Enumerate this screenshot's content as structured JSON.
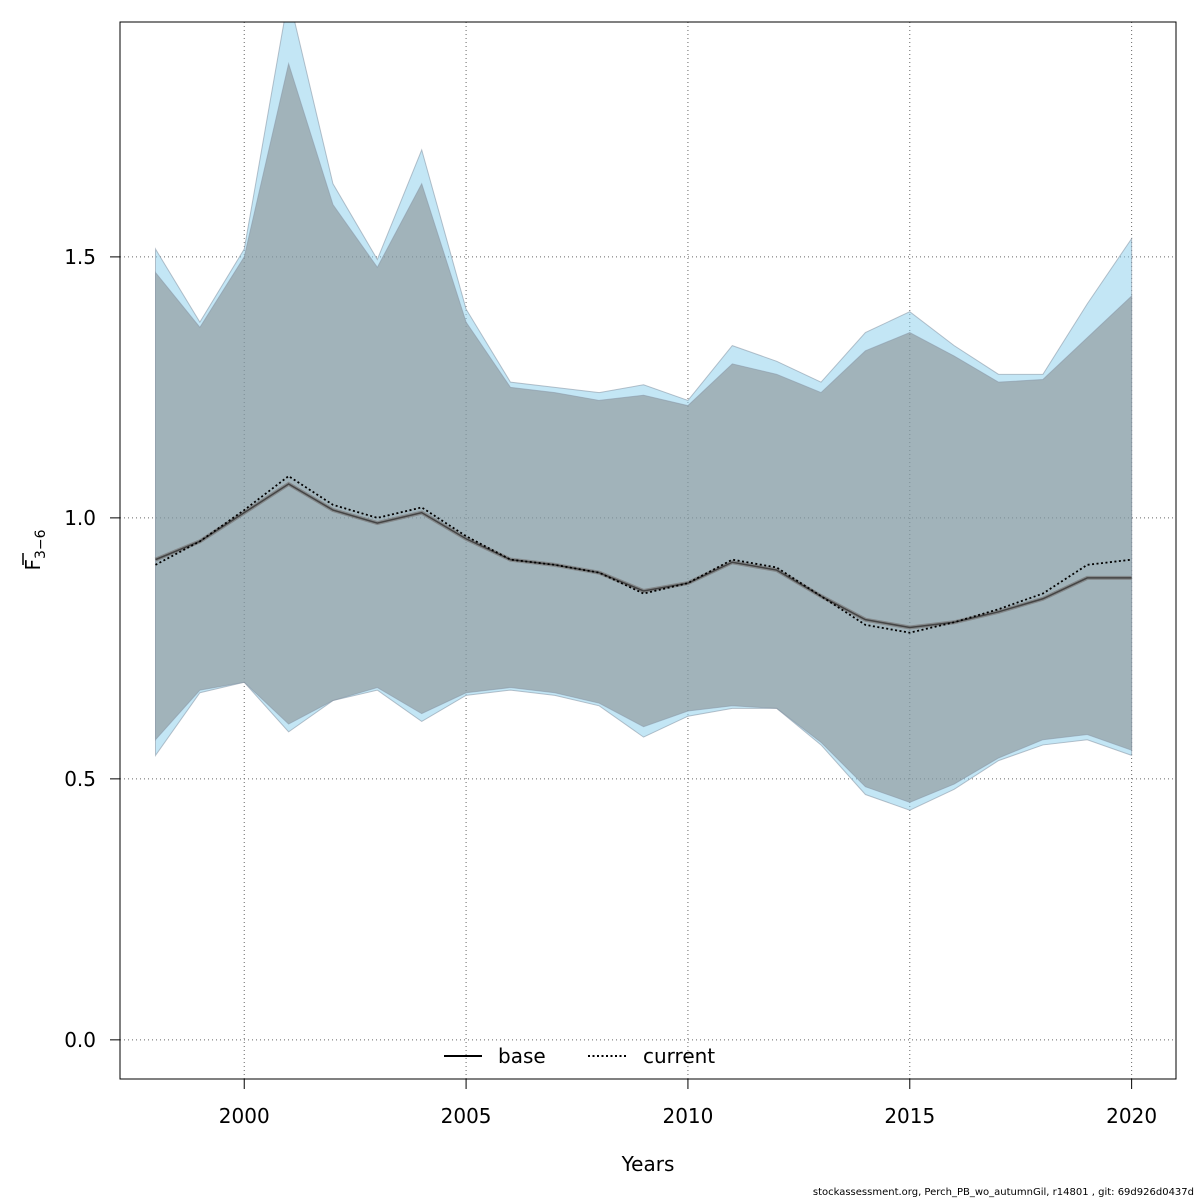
{
  "chart_data": {
    "type": "area",
    "xlabel": "Years",
    "ylabel_main": "F",
    "ylabel_sub": "3−6",
    "xlim": [
      1997.2,
      2021.0
    ],
    "ylim": [
      -0.075,
      1.95
    ],
    "xticks": [
      2000,
      2005,
      2010,
      2015,
      2020
    ],
    "yticks": [
      0.0,
      0.5,
      1.0,
      1.5
    ],
    "ytick_labels": [
      "0.0",
      "0.5",
      "1.0",
      "1.5"
    ],
    "grid": true,
    "legend_position": "bottom-center",
    "x": [
      1998,
      1999,
      2000,
      2001,
      2002,
      2003,
      2004,
      2005,
      2006,
      2007,
      2008,
      2009,
      2010,
      2011,
      2012,
      2013,
      2014,
      2015,
      2016,
      2017,
      2018,
      2019,
      2020
    ],
    "series": [
      {
        "name": "base",
        "line_style": "solid",
        "color": "#000000",
        "band_color": "#808080",
        "values": [
          0.92,
          0.955,
          1.01,
          1.065,
          1.015,
          0.99,
          1.01,
          0.96,
          0.92,
          0.91,
          0.895,
          0.86,
          0.875,
          0.915,
          0.9,
          0.85,
          0.805,
          0.79,
          0.8,
          0.82,
          0.845,
          0.885,
          0.885
        ],
        "lower": [
          0.575,
          0.67,
          0.685,
          0.605,
          0.65,
          0.675,
          0.625,
          0.665,
          0.675,
          0.665,
          0.645,
          0.6,
          0.63,
          0.64,
          0.635,
          0.57,
          0.485,
          0.455,
          0.49,
          0.54,
          0.575,
          0.585,
          0.555
        ],
        "upper": [
          1.47,
          1.365,
          1.5,
          1.87,
          1.6,
          1.48,
          1.64,
          1.375,
          1.25,
          1.24,
          1.225,
          1.235,
          1.215,
          1.295,
          1.275,
          1.24,
          1.32,
          1.355,
          1.31,
          1.26,
          1.265,
          1.345,
          1.425
        ]
      },
      {
        "name": "current",
        "line_style": "dotted",
        "color": "#000000",
        "band_color": "#87ceeb",
        "values": [
          0.91,
          0.955,
          1.015,
          1.08,
          1.025,
          1.0,
          1.02,
          0.965,
          0.92,
          0.91,
          0.895,
          0.855,
          0.875,
          0.92,
          0.905,
          0.85,
          0.795,
          0.78,
          0.8,
          0.825,
          0.855,
          0.91,
          0.92
        ],
        "lower": [
          0.545,
          0.665,
          0.685,
          0.59,
          0.65,
          0.67,
          0.61,
          0.66,
          0.67,
          0.66,
          0.64,
          0.58,
          0.62,
          0.635,
          0.635,
          0.565,
          0.47,
          0.44,
          0.48,
          0.535,
          0.565,
          0.575,
          0.545
        ],
        "upper": [
          1.515,
          1.375,
          1.515,
          2.0,
          1.64,
          1.495,
          1.705,
          1.4,
          1.26,
          1.25,
          1.24,
          1.255,
          1.225,
          1.33,
          1.3,
          1.26,
          1.355,
          1.395,
          1.33,
          1.275,
          1.275,
          1.41,
          1.535
        ]
      }
    ]
  },
  "footer": "stockassessment.org, Perch_PB_wo_autumnGil, r14801 , git: 69d926d0437d"
}
